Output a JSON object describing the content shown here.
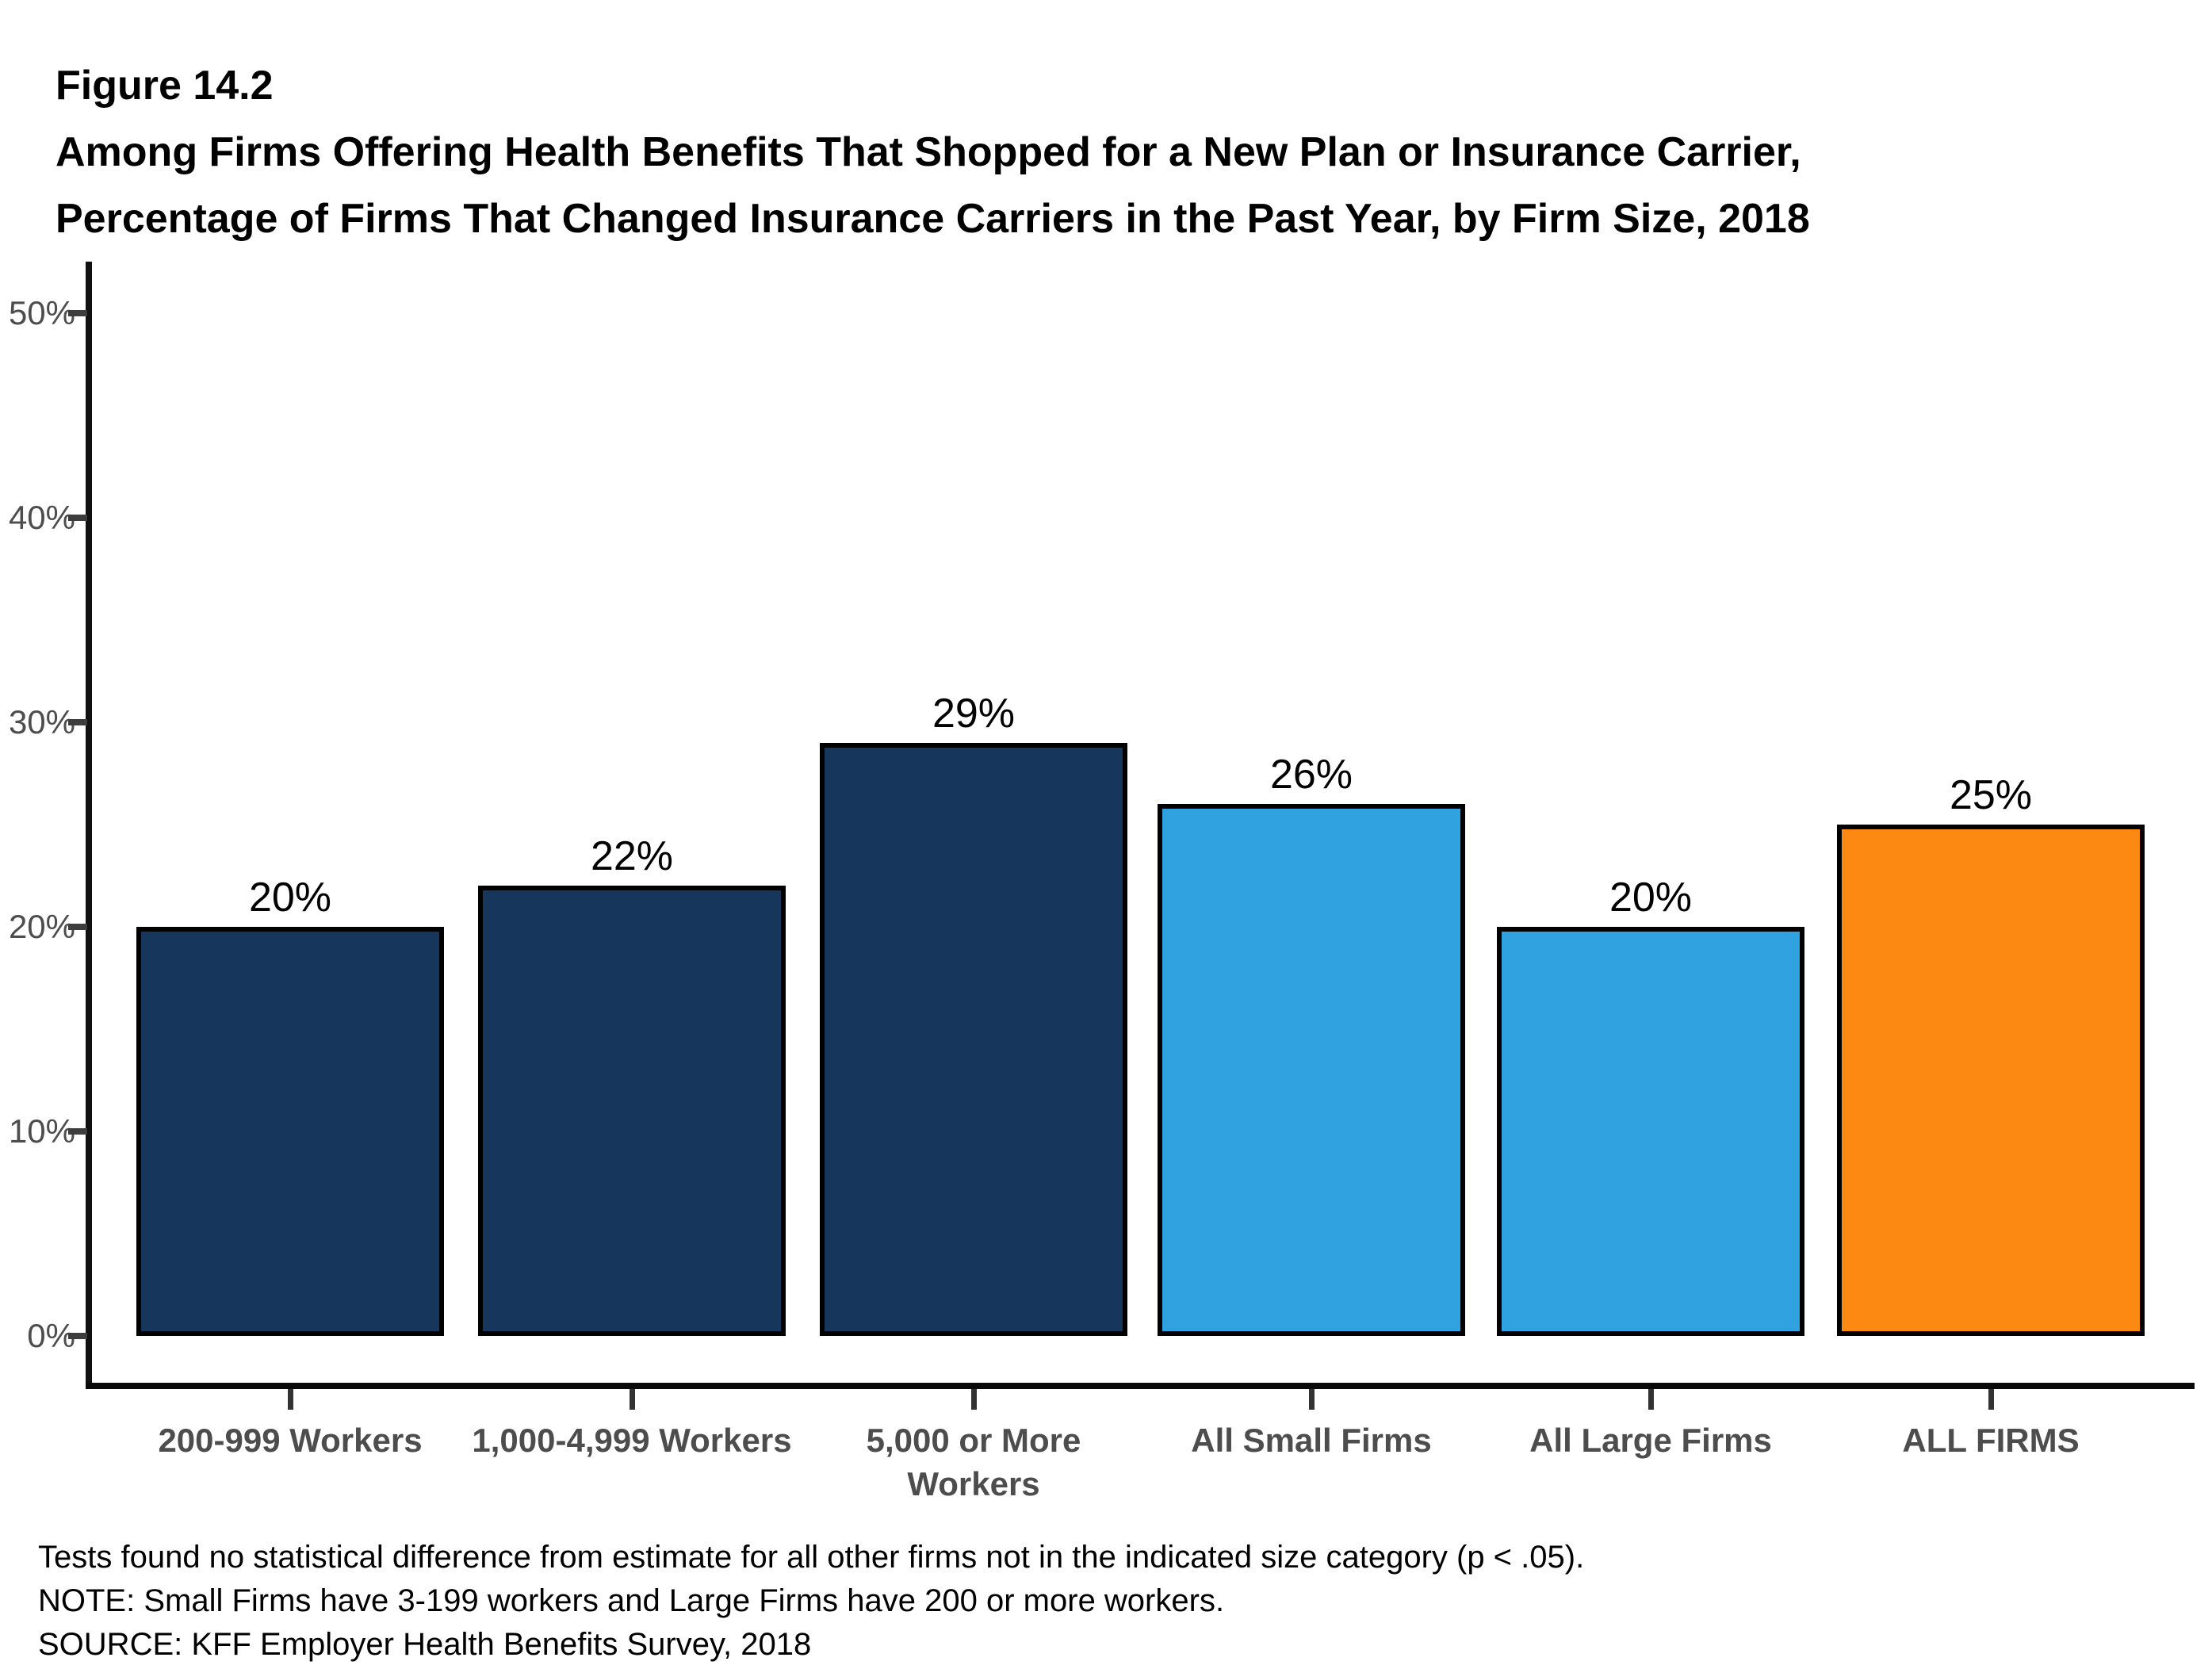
{
  "figure": {
    "label": "Figure 14.2",
    "title_line1": "Among Firms Offering Health Benefits That Shopped for a New Plan or Insurance Carrier,",
    "title_line2": "Percentage of Firms That Changed Insurance Carriers in the Past Year, by Firm Size, 2018"
  },
  "chart_data": {
    "type": "bar",
    "title": "Among Firms Offering Health Benefits That Shopped for a New Plan or Insurance Carrier, Percentage of Firms That Changed Insurance Carriers in the Past Year, by Firm Size, 2018",
    "categories": [
      "200-999 Workers",
      "1,000-4,999 Workers",
      "5,000 or More Workers",
      "All Small Firms",
      "All Large Firms",
      "ALL FIRMS"
    ],
    "values": [
      20,
      22,
      29,
      26,
      20,
      25
    ],
    "value_labels": [
      "20%",
      "22%",
      "29%",
      "26%",
      "20%",
      "25%"
    ],
    "bar_colors": [
      "#17365B",
      "#17365B",
      "#17365B",
      "#31A2E0",
      "#31A2E0",
      "#FC8A12"
    ],
    "bar_border_color": "#000000",
    "xlabel": "",
    "ylabel": "",
    "ylim": [
      0,
      50
    ],
    "yticks": [
      "0%",
      "10%",
      "20%",
      "30%",
      "40%",
      "50%"
    ],
    "grid": false,
    "legend": "none"
  },
  "footnotes": {
    "lines": [
      "Tests found no statistical difference from estimate for all other firms not in the indicated size category (p < .05).",
      "NOTE: Small Firms have 3-199 workers and Large Firms have 200 or more workers.",
      "SOURCE: KFF Employer Health Benefits Survey, 2018"
    ]
  }
}
